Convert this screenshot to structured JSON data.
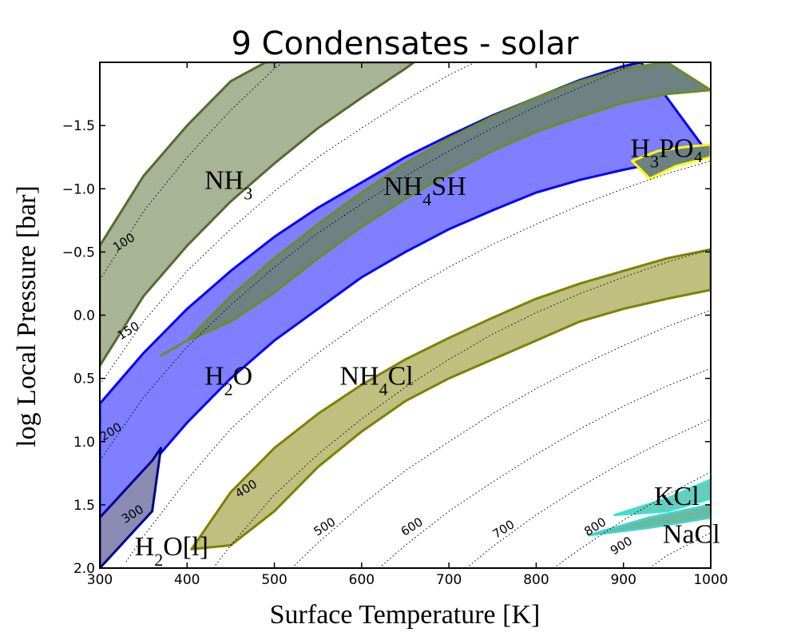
{
  "chart_data": {
    "type": "area",
    "title": "9 Condensates - solar",
    "xlabel": "Surface Temperature [K]",
    "ylabel": "log Local Pressure [bar]",
    "xlim": [
      300,
      1000
    ],
    "ylim": [
      -2.0,
      2.0
    ],
    "y_inverted": true,
    "xticks": [
      300,
      400,
      500,
      600,
      700,
      800,
      900,
      1000
    ],
    "yticks": [
      -1.5,
      -1.0,
      -0.5,
      0.0,
      0.5,
      1.0,
      1.5,
      2.0
    ],
    "xtick_labels": [
      "300",
      "400",
      "500",
      "600",
      "700",
      "800",
      "900",
      "1000"
    ],
    "ytick_labels": [
      "−1.5",
      "−1.0",
      "−0.5",
      "0.0",
      "0.5",
      "1.0",
      "1.5",
      "2.0"
    ],
    "regions": [
      {
        "name": "NH3",
        "label_main": "NH",
        "label_sub": "3",
        "label_tail": "",
        "label_at": [
          420,
          -1.0
        ],
        "fill": "#a9b396",
        "stroke": "#556b2f",
        "upper": [
          [
            300,
            -0.55
          ],
          [
            350,
            -1.1
          ],
          [
            400,
            -1.5
          ],
          [
            450,
            -1.85
          ],
          [
            490,
            -2.0
          ]
        ],
        "lower": [
          [
            300,
            0.4
          ],
          [
            350,
            -0.15
          ],
          [
            400,
            -0.55
          ],
          [
            450,
            -0.9
          ],
          [
            500,
            -1.2
          ],
          [
            550,
            -1.48
          ],
          [
            600,
            -1.72
          ],
          [
            650,
            -1.95
          ],
          [
            660,
            -2.0
          ]
        ]
      },
      {
        "name": "H2O",
        "label_main": "H",
        "label_sub": "2",
        "label_tail": "O",
        "label_at": [
          420,
          0.55
        ],
        "fill": "#7f7fff",
        "stroke": "#0000ff",
        "upper": [
          [
            300,
            0.7
          ],
          [
            350,
            0.3
          ],
          [
            400,
            -0.05
          ],
          [
            450,
            -0.35
          ],
          [
            500,
            -0.62
          ],
          [
            550,
            -0.85
          ],
          [
            600,
            -1.05
          ],
          [
            650,
            -1.25
          ],
          [
            700,
            -1.42
          ],
          [
            750,
            -1.58
          ],
          [
            800,
            -1.72
          ],
          [
            850,
            -1.86
          ],
          [
            900,
            -1.97
          ],
          [
            920,
            -2.0
          ]
        ],
        "lower": [
          [
            300,
            1.75
          ],
          [
            350,
            1.25
          ],
          [
            400,
            0.85
          ],
          [
            450,
            0.5
          ],
          [
            500,
            0.2
          ],
          [
            550,
            -0.05
          ],
          [
            600,
            -0.3
          ],
          [
            650,
            -0.5
          ],
          [
            700,
            -0.68
          ],
          [
            750,
            -0.83
          ],
          [
            800,
            -0.97
          ],
          [
            850,
            -1.07
          ],
          [
            900,
            -1.15
          ],
          [
            950,
            -1.22
          ],
          [
            1000,
            -1.25
          ]
        ]
      },
      {
        "name": "NH4SH",
        "label_main": "NH",
        "label_sub": "4",
        "label_tail": "SH",
        "label_at": [
          625,
          -0.95
        ],
        "fill": "#6e8284",
        "stroke": "#6b8e23",
        "upper": [
          [
            370,
            0.32
          ],
          [
            400,
            0.2
          ],
          [
            450,
            -0.15
          ],
          [
            500,
            -0.45
          ],
          [
            550,
            -0.72
          ],
          [
            600,
            -0.97
          ],
          [
            650,
            -1.2
          ],
          [
            700,
            -1.4
          ],
          [
            750,
            -1.57
          ],
          [
            800,
            -1.72
          ],
          [
            850,
            -1.85
          ],
          [
            900,
            -1.95
          ],
          [
            950,
            -2.0
          ]
        ],
        "lower": [
          [
            370,
            0.32
          ],
          [
            400,
            0.2
          ],
          [
            450,
            0.05
          ],
          [
            500,
            -0.18
          ],
          [
            550,
            -0.45
          ],
          [
            600,
            -0.7
          ],
          [
            650,
            -0.92
          ],
          [
            700,
            -1.12
          ],
          [
            750,
            -1.3
          ],
          [
            800,
            -1.45
          ],
          [
            850,
            -1.57
          ],
          [
            900,
            -1.68
          ],
          [
            950,
            -1.75
          ],
          [
            1000,
            -1.78
          ]
        ]
      },
      {
        "name": "H3PO4",
        "label_main": "H",
        "label_sub": "3",
        "label_tail": "PO₄",
        "label_at": [
          908,
          -1.25
        ],
        "fill": "#6e8284",
        "stroke": "#ffff00",
        "upper": [
          [
            910,
            -1.22
          ],
          [
            940,
            -1.3
          ],
          [
            970,
            -1.33
          ],
          [
            1000,
            -1.35
          ]
        ],
        "lower": [
          [
            910,
            -1.22
          ],
          [
            930,
            -1.08
          ],
          [
            960,
            -1.18
          ],
          [
            1000,
            -1.25
          ]
        ]
      },
      {
        "name": "NH4Cl",
        "label_main": "NH",
        "label_sub": "4",
        "label_tail": "Cl",
        "label_at": [
          575,
          0.55
        ],
        "fill": "#bfbf80",
        "stroke": "#808000",
        "upper": [
          [
            405,
            1.85
          ],
          [
            450,
            1.4
          ],
          [
            500,
            1.05
          ],
          [
            550,
            0.78
          ],
          [
            600,
            0.55
          ],
          [
            650,
            0.35
          ],
          [
            700,
            0.18
          ],
          [
            750,
            0.02
          ],
          [
            800,
            -0.13
          ],
          [
            850,
            -0.25
          ],
          [
            900,
            -0.35
          ],
          [
            950,
            -0.45
          ],
          [
            1000,
            -0.52
          ]
        ],
        "lower": [
          [
            405,
            1.85
          ],
          [
            450,
            1.82
          ],
          [
            500,
            1.55
          ],
          [
            550,
            1.2
          ],
          [
            600,
            0.92
          ],
          [
            650,
            0.68
          ],
          [
            700,
            0.5
          ],
          [
            750,
            0.35
          ],
          [
            800,
            0.2
          ],
          [
            850,
            0.05
          ],
          [
            900,
            -0.05
          ],
          [
            950,
            -0.13
          ],
          [
            1000,
            -0.2
          ]
        ]
      },
      {
        "name": "H2O[l]",
        "label_main": "H",
        "label_sub": "2",
        "label_tail": "O[l]",
        "label_at": [
          340,
          1.9
        ],
        "fill": "#8a8ab3",
        "stroke": "#00008b",
        "upper": [
          [
            300,
            1.6
          ],
          [
            320,
            1.45
          ],
          [
            340,
            1.3
          ],
          [
            360,
            1.15
          ],
          [
            370,
            1.05
          ]
        ],
        "lower": [
          [
            300,
            2.0
          ],
          [
            320,
            1.85
          ],
          [
            340,
            1.7
          ],
          [
            360,
            1.55
          ],
          [
            370,
            1.05
          ]
        ]
      },
      {
        "name": "KCl",
        "label_main": "KCl",
        "label_sub": "",
        "label_tail": "",
        "label_at": [
          935,
          1.5
        ],
        "fill": "#66ccbb",
        "stroke": "#40e0d0",
        "upper": [
          [
            890,
            1.58
          ],
          [
            950,
            1.45
          ],
          [
            1000,
            1.3
          ]
        ],
        "lower": [
          [
            890,
            1.58
          ],
          [
            950,
            1.55
          ],
          [
            1000,
            1.45
          ]
        ]
      },
      {
        "name": "NaCl",
        "label_main": "NaCl",
        "label_sub": "",
        "label_tail": "",
        "label_at": [
          945,
          1.8
        ],
        "fill": "#66bba0",
        "stroke": "#48d1cc",
        "upper": [
          [
            860,
            1.74
          ],
          [
            930,
            1.6
          ],
          [
            1000,
            1.5
          ]
        ],
        "lower": [
          [
            860,
            1.74
          ],
          [
            930,
            1.68
          ],
          [
            1000,
            1.6
          ]
        ]
      }
    ],
    "isotherms": [
      {
        "label": "100",
        "points": [
          [
            300,
            -0.28
          ],
          [
            350,
            -0.82
          ],
          [
            400,
            -1.25
          ],
          [
            450,
            -1.62
          ],
          [
            500,
            -1.95
          ],
          [
            510,
            -2.0
          ]
        ]
      },
      {
        "label": "150",
        "points": [
          [
            300,
            0.55
          ],
          [
            350,
            0.05
          ],
          [
            400,
            -0.35
          ],
          [
            450,
            -0.68
          ],
          [
            500,
            -0.98
          ],
          [
            550,
            -1.25
          ],
          [
            600,
            -1.48
          ],
          [
            650,
            -1.7
          ],
          [
            700,
            -1.9
          ],
          [
            730,
            -2.0
          ]
        ]
      },
      {
        "label": "200",
        "points": [
          [
            300,
            1.15
          ],
          [
            350,
            0.65
          ],
          [
            400,
            0.25
          ],
          [
            450,
            -0.08
          ],
          [
            500,
            -0.38
          ],
          [
            550,
            -0.65
          ],
          [
            600,
            -0.88
          ],
          [
            650,
            -1.1
          ],
          [
            700,
            -1.3
          ],
          [
            750,
            -1.48
          ],
          [
            800,
            -1.65
          ],
          [
            850,
            -1.8
          ],
          [
            900,
            -1.95
          ],
          [
            920,
            -2.0
          ]
        ]
      },
      {
        "label": "300",
        "points": [
          [
            330,
            1.95
          ],
          [
            350,
            1.75
          ],
          [
            400,
            1.3
          ],
          [
            450,
            0.9
          ],
          [
            500,
            0.58
          ],
          [
            550,
            0.3
          ],
          [
            600,
            0.05
          ],
          [
            650,
            -0.18
          ],
          [
            700,
            -0.38
          ],
          [
            750,
            -0.56
          ],
          [
            800,
            -0.72
          ],
          [
            850,
            -0.87
          ],
          [
            900,
            -1.0
          ],
          [
            950,
            -1.12
          ],
          [
            1000,
            -1.22
          ]
        ]
      },
      {
        "label": "400",
        "points": [
          [
            430,
            2.0
          ],
          [
            450,
            1.82
          ],
          [
            500,
            1.42
          ],
          [
            550,
            1.1
          ],
          [
            600,
            0.82
          ],
          [
            650,
            0.57
          ],
          [
            700,
            0.35
          ],
          [
            750,
            0.15
          ],
          [
            800,
            -0.02
          ],
          [
            850,
            -0.17
          ],
          [
            900,
            -0.3
          ],
          [
            950,
            -0.42
          ],
          [
            1000,
            -0.52
          ]
        ]
      },
      {
        "label": "500",
        "points": [
          [
            520,
            2.0
          ],
          [
            550,
            1.8
          ],
          [
            600,
            1.5
          ],
          [
            650,
            1.23
          ],
          [
            700,
            1.0
          ],
          [
            750,
            0.78
          ],
          [
            800,
            0.58
          ],
          [
            850,
            0.4
          ],
          [
            900,
            0.24
          ],
          [
            950,
            0.09
          ],
          [
            1000,
            -0.04
          ]
        ]
      },
      {
        "label": "600",
        "points": [
          [
            620,
            2.0
          ],
          [
            650,
            1.82
          ],
          [
            700,
            1.55
          ],
          [
            750,
            1.32
          ],
          [
            800,
            1.1
          ],
          [
            850,
            0.9
          ],
          [
            900,
            0.72
          ],
          [
            950,
            0.56
          ],
          [
            1000,
            0.42
          ]
        ]
      },
      {
        "label": "700",
        "points": [
          [
            720,
            2.0
          ],
          [
            750,
            1.83
          ],
          [
            800,
            1.58
          ],
          [
            850,
            1.36
          ],
          [
            900,
            1.16
          ],
          [
            950,
            0.98
          ],
          [
            1000,
            0.82
          ]
        ]
      },
      {
        "label": "800",
        "points": [
          [
            820,
            2.0
          ],
          [
            850,
            1.85
          ],
          [
            900,
            1.62
          ],
          [
            950,
            1.42
          ],
          [
            1000,
            1.24
          ]
        ]
      },
      {
        "label": "900",
        "points": [
          [
            930,
            2.0
          ],
          [
            950,
            1.9
          ],
          [
            1000,
            1.72
          ]
        ]
      }
    ],
    "isotherm_label_at": {
      "100": [
        330,
        -0.55
      ],
      "150": [
        335,
        0.15
      ],
      "200": [
        315,
        0.95
      ],
      "300": [
        340,
        1.6
      ],
      "400": [
        470,
        1.4
      ],
      "500": [
        560,
        1.7
      ],
      "600": [
        660,
        1.7
      ],
      "700": [
        765,
        1.72
      ],
      "800": [
        870,
        1.7
      ],
      "900": [
        900,
        1.85
      ]
    }
  }
}
